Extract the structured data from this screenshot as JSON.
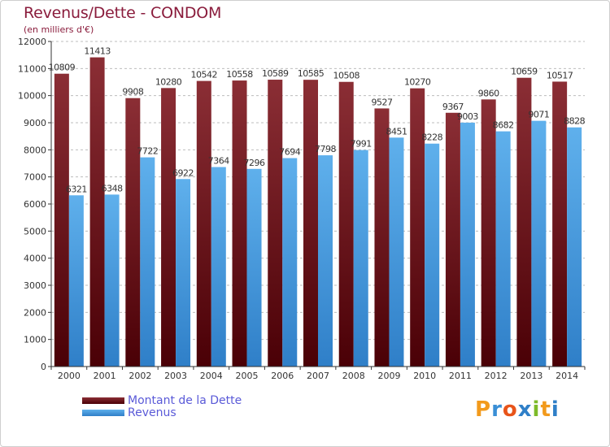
{
  "title": "Revenus/Dette - CONDOM",
  "subtitle": "(en milliers d'€)",
  "colors": {
    "debt_top": "#8b2e35",
    "debt_bottom": "#4a0006",
    "revenue_top": "#5fb0ec",
    "revenue_bottom": "#2f7fc8",
    "axis": "#333333",
    "grid": "#bdbdbd",
    "text": "#333333"
  },
  "chart_data": {
    "type": "bar",
    "categories": [
      "2000",
      "2001",
      "2002",
      "2003",
      "2004",
      "2005",
      "2006",
      "2007",
      "2008",
      "2009",
      "2010",
      "2011",
      "2012",
      "2013",
      "2014"
    ],
    "series": [
      {
        "name": "Montant de la Dette",
        "values": [
          10809,
          11413,
          9908,
          10280,
          10542,
          10558,
          10589,
          10585,
          10508,
          9527,
          10270,
          9367,
          9860,
          10659,
          10517
        ]
      },
      {
        "name": "Revenus",
        "values": [
          6321,
          6348,
          7722,
          6922,
          7364,
          7296,
          7694,
          7798,
          7991,
          8451,
          8228,
          9003,
          8682,
          9071,
          8828
        ]
      }
    ],
    "yticks": [
      0,
      1000,
      2000,
      3000,
      4000,
      5000,
      6000,
      7000,
      8000,
      9000,
      10000,
      11000,
      12000
    ],
    "ylim": [
      0,
      12000
    ],
    "grid": true,
    "legend_position": "bottom-left"
  },
  "legend": [
    {
      "label": "Montant de la Dette"
    },
    {
      "label": "Revenus"
    }
  ],
  "logo": {
    "letters": [
      "P",
      "r",
      "o",
      "x",
      "i",
      "t",
      "i"
    ],
    "letter_colors": [
      "#f29a1c",
      "#3a8fd6",
      "#e8541a",
      "#2f7fc8",
      "#7dbb2a",
      "#f29a1c",
      "#2f7fc8"
    ]
  }
}
